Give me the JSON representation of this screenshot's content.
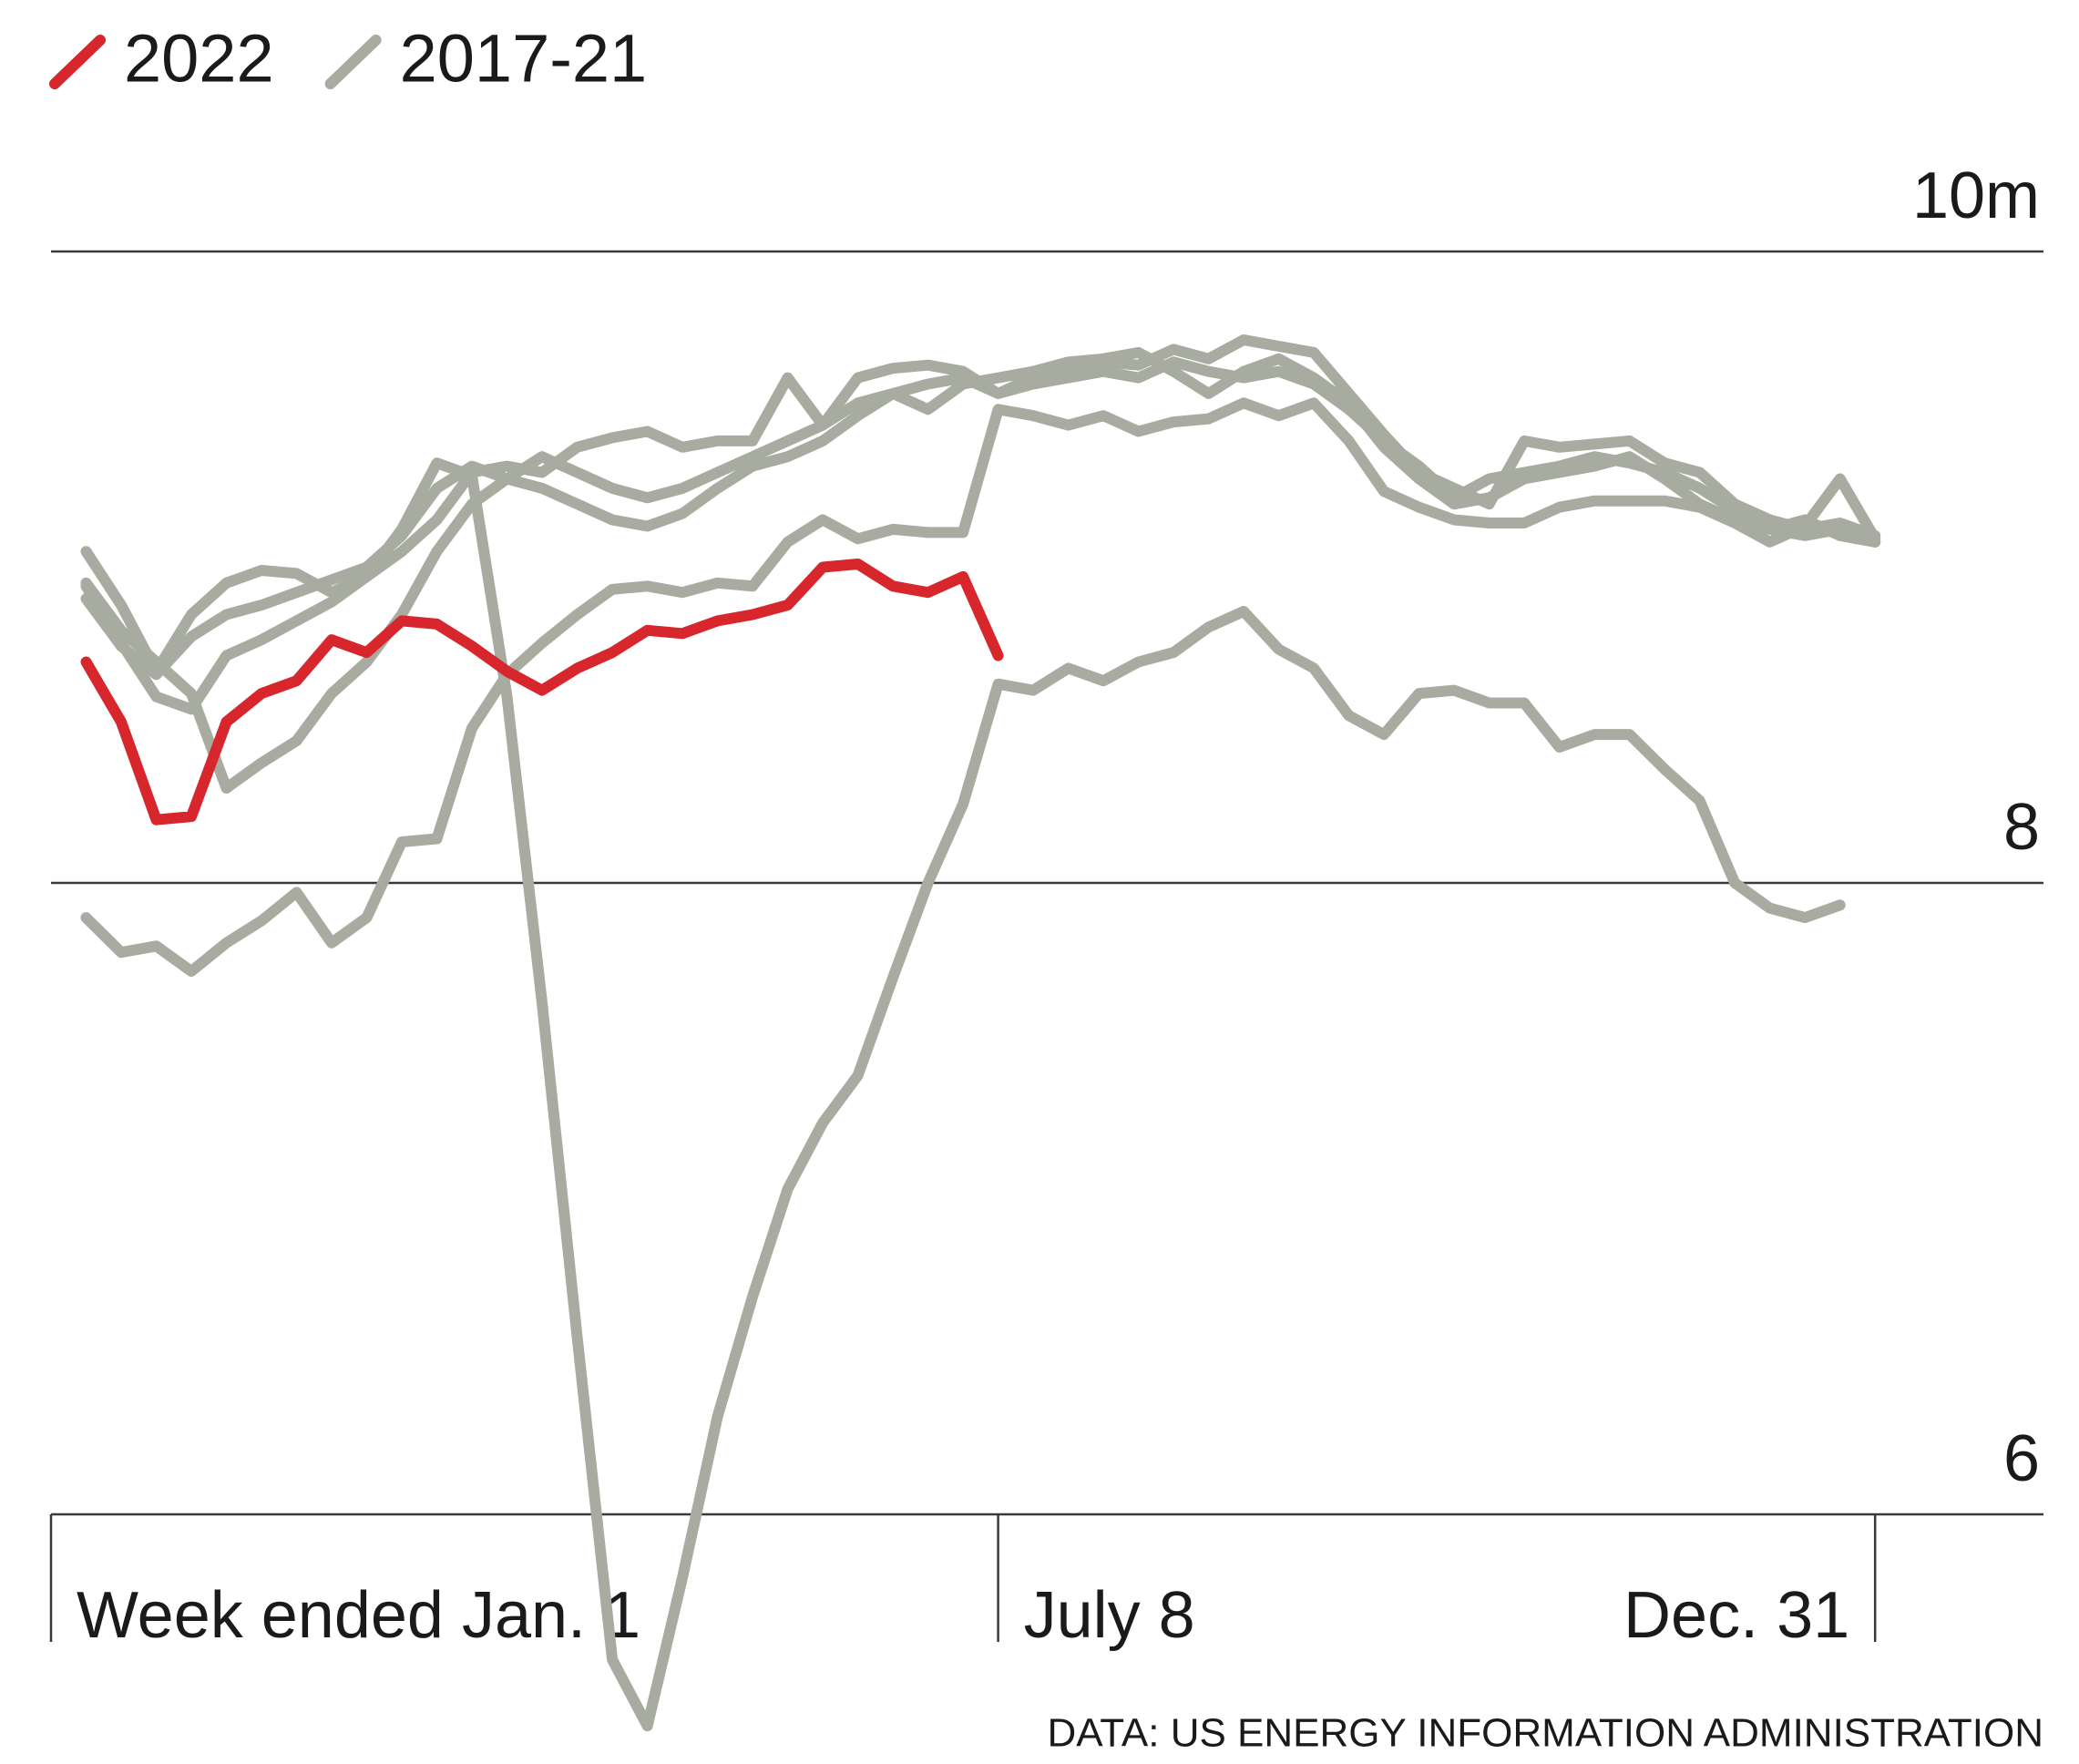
{
  "chart_data": {
    "type": "line",
    "source": "DATA: US ENERGY INFORMATION ADMINISTRATION",
    "x": [
      1,
      2,
      3,
      4,
      5,
      6,
      7,
      8,
      9,
      10,
      11,
      12,
      13,
      14,
      15,
      16,
      17,
      18,
      19,
      20,
      21,
      22,
      23,
      24,
      25,
      26,
      27,
      28,
      29,
      30,
      31,
      32,
      33,
      34,
      35,
      36,
      37,
      38,
      39,
      40,
      41,
      42,
      43,
      44,
      45,
      46,
      47,
      48,
      49,
      50,
      51,
      52
    ],
    "xlim": [
      0,
      56.8
    ],
    "xticks": [
      {
        "value": 0,
        "label": "Week ended Jan. 1"
      },
      {
        "value": 27,
        "label": "July 8"
      },
      {
        "value": 52,
        "label": "Dec. 31"
      }
    ],
    "ylim": [
      6,
      10
    ],
    "yticks": [
      {
        "value": 10,
        "label": "10m"
      },
      8,
      6
    ],
    "grid": true,
    "legend": "top-left",
    "series": [
      {
        "name": "2022",
        "color": "#d7262c",
        "values": [
          8.7,
          8.51,
          8.2,
          8.21,
          8.51,
          8.6,
          8.64,
          8.77,
          8.73,
          8.83,
          8.82,
          8.75,
          8.67,
          8.61,
          8.68,
          8.73,
          8.8,
          8.79,
          8.83,
          8.85,
          8.88,
          9.0,
          9.01,
          8.94,
          8.92,
          8.97,
          8.72,
          null,
          null,
          null,
          null,
          null,
          null,
          null,
          null,
          null,
          null,
          null,
          null,
          null,
          null,
          null,
          null,
          null,
          null,
          null,
          null,
          null,
          null,
          null,
          null,
          null
        ]
      },
      {
        "name": "2017-21",
        "color": "#a8ab9f",
        "lines": [
          [
            8.94,
            8.76,
            8.59,
            8.55,
            8.72,
            8.77,
            8.83,
            8.89,
            8.97,
            9.12,
            9.33,
            9.29,
            8.59,
            7.62,
            6.56,
            5.54,
            5.33,
            5.8,
            6.31,
            6.69,
            7.03,
            7.24,
            7.39,
            7.7,
            8.0,
            8.25,
            8.63,
            8.61,
            8.68,
            8.64,
            8.7,
            8.73,
            8.81,
            8.86,
            8.74,
            8.68,
            8.53,
            8.47,
            8.6,
            8.61,
            8.57,
            8.57,
            8.43,
            8.47,
            8.47,
            8.36,
            8.26,
            8.0,
            7.92,
            7.89,
            7.93,
            null
          ],
          [
            7.89,
            7.78,
            7.8,
            7.72,
            7.81,
            7.88,
            7.97,
            7.81,
            7.89,
            8.13,
            8.14,
            8.49,
            8.66,
            8.76,
            8.85,
            8.93,
            8.94,
            8.92,
            8.95,
            8.94,
            9.08,
            9.15,
            9.09,
            9.12,
            9.11,
            9.11,
            9.5,
            9.48,
            9.45,
            9.48,
            9.43,
            9.46,
            9.47,
            9.52,
            9.48,
            9.52,
            9.4,
            9.24,
            9.19,
            9.15,
            9.14,
            9.14,
            9.19,
            9.21,
            9.21,
            9.21,
            9.19,
            9.14,
            9.08,
            9.13,
            9.28,
            9.09
          ],
          [
            9.05,
            8.88,
            8.67,
            8.85,
            8.95,
            8.99,
            8.98,
            8.92,
            8.97,
            9.05,
            9.15,
            9.3,
            9.32,
            9.3,
            9.38,
            9.41,
            9.43,
            9.38,
            9.4,
            9.4,
            9.6,
            9.45,
            9.6,
            9.63,
            9.64,
            9.62,
            9.55,
            9.6,
            9.63,
            9.65,
            9.64,
            9.69,
            9.66,
            9.72,
            9.7,
            9.68,
            9.55,
            9.42,
            9.3,
            9.25,
            9.2,
            9.4,
            9.38,
            9.39,
            9.4,
            9.33,
            9.3,
            9.2,
            9.15,
            9.12,
            9.14,
            9.1
          ],
          [
            8.9,
            8.75,
            8.66,
            8.78,
            8.85,
            8.88,
            8.92,
            8.96,
            9.0,
            9.1,
            9.25,
            9.32,
            9.28,
            9.35,
            9.3,
            9.25,
            9.22,
            9.25,
            9.3,
            9.35,
            9.4,
            9.45,
            9.52,
            9.55,
            9.58,
            9.6,
            9.55,
            9.58,
            9.6,
            9.62,
            9.6,
            9.65,
            9.62,
            9.6,
            9.62,
            9.58,
            9.5,
            9.4,
            9.32,
            9.22,
            9.28,
            9.3,
            9.32,
            9.35,
            9.33,
            9.3,
            9.25,
            9.18,
            9.12,
            9.1,
            9.12,
            9.08
          ],
          [
            8.95,
            8.8,
            8.7,
            8.6,
            8.3,
            8.38,
            8.45,
            8.6,
            8.7,
            8.85,
            9.05,
            9.2,
            9.28,
            9.25,
            9.2,
            9.15,
            9.13,
            9.17,
            9.25,
            9.32,
            9.35,
            9.4,
            9.48,
            9.55,
            9.5,
            9.58,
            9.6,
            9.62,
            9.65,
            9.66,
            9.68,
            9.62,
            9.55,
            9.62,
            9.66,
            9.6,
            9.52,
            9.38,
            9.28,
            9.2,
            9.22,
            9.28,
            9.3,
            9.32,
            9.35,
            9.28,
            9.2,
            9.15,
            9.12,
            9.15,
            9.1,
            9.08
          ]
        ]
      }
    ]
  }
}
